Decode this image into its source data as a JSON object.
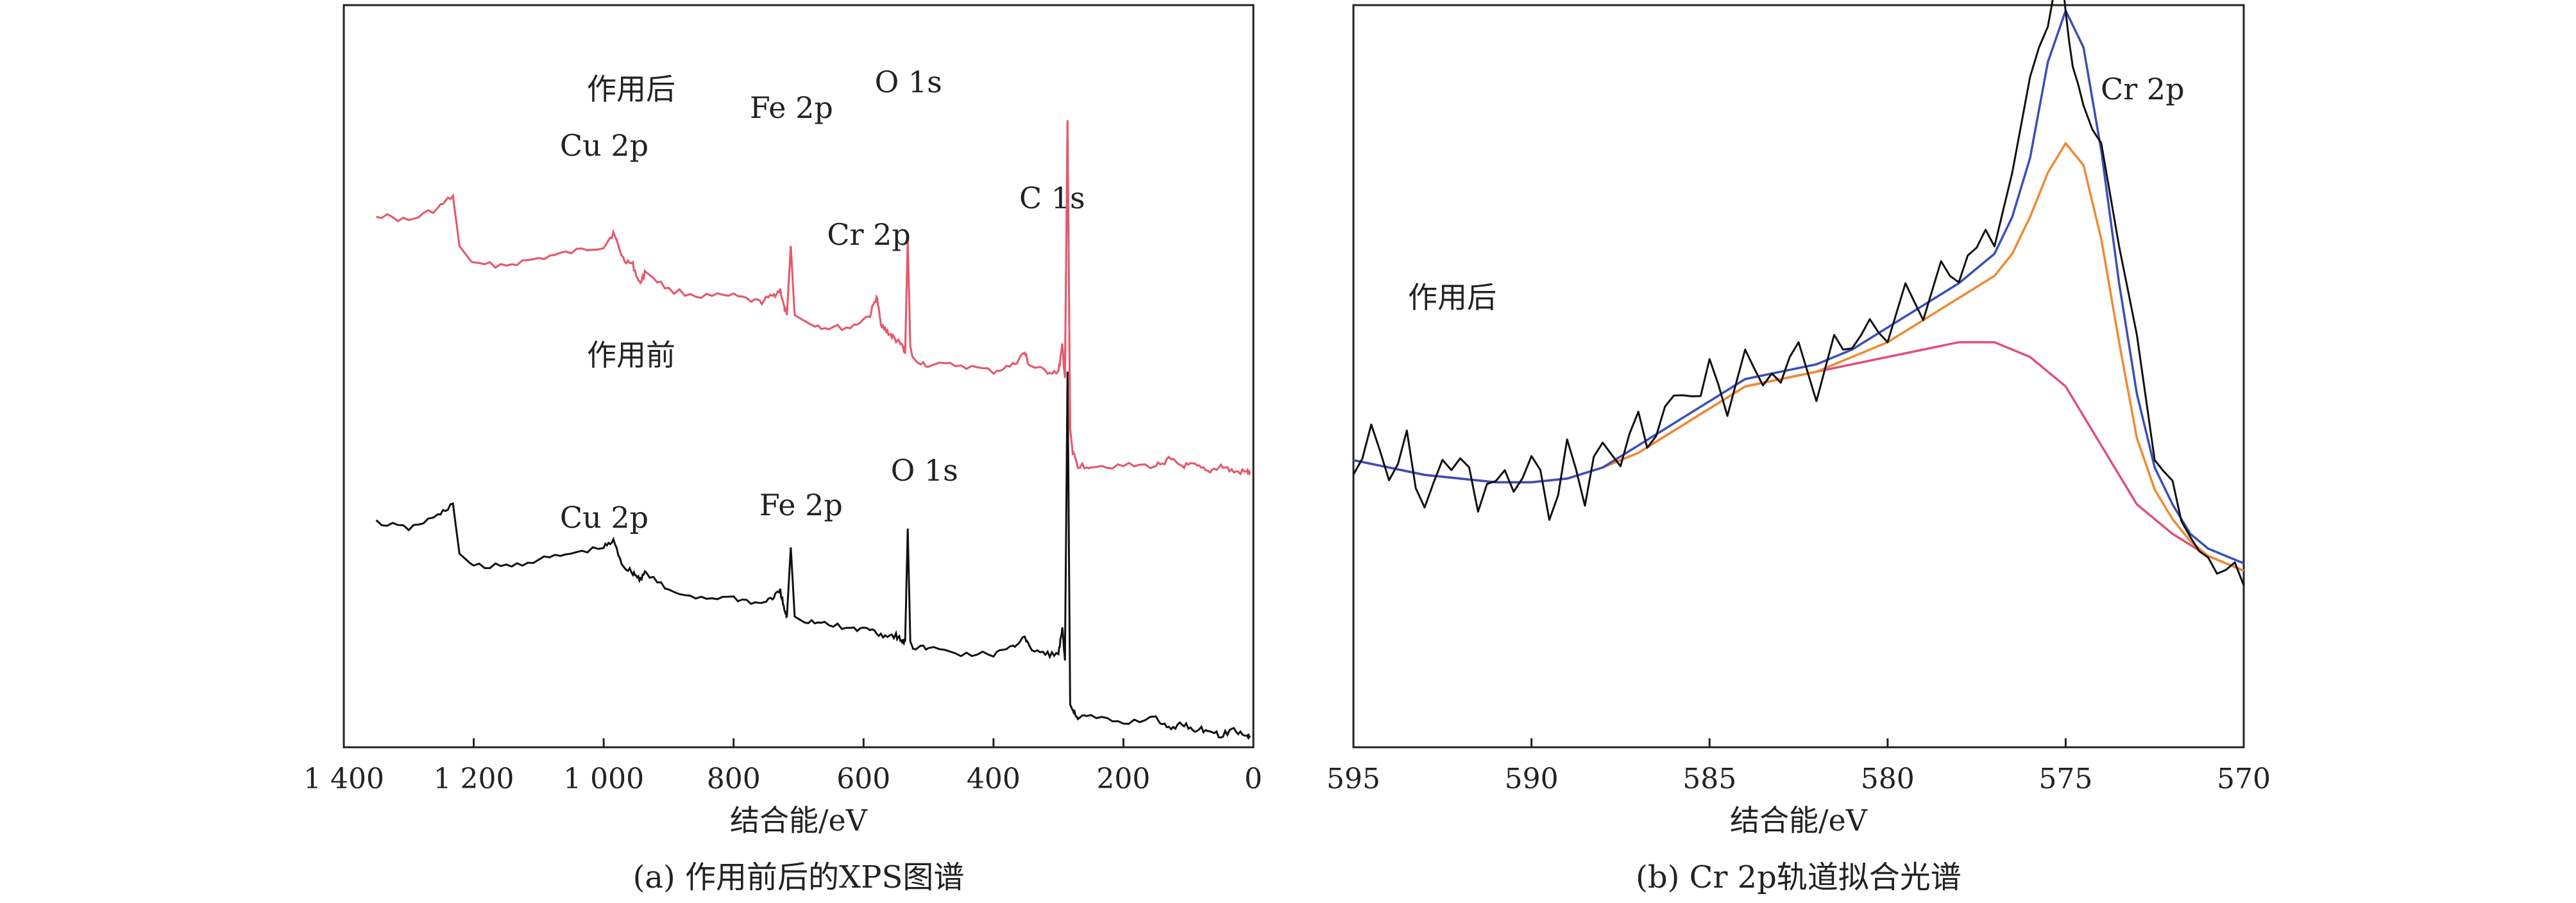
{
  "chart_data": [
    {
      "type": "line",
      "caption": "(a) 作用前后的XPS图谱",
      "xlabel": "结合能/eV",
      "ylabel": "",
      "xlim": [
        1400,
        0
      ],
      "x_reversed": true,
      "y_ticks_shown": false,
      "x_ticks": [
        1400,
        1200,
        1000,
        800,
        600,
        400,
        200,
        0
      ],
      "x_tick_labels": [
        "1 400",
        "1 200",
        "1 000",
        "800",
        "600",
        "400",
        "200",
        "0"
      ],
      "series": [
        {
          "name": "作用后",
          "color": "#e0507a",
          "overlay_color": "#f08a30",
          "x": [
            1350,
            1300,
            1255,
            1232,
            1222,
            1200,
            1150,
            1100,
            1050,
            1000,
            985,
            970,
            955,
            945,
            935,
            900,
            850,
            800,
            760,
            740,
            728,
            722,
            718,
            712,
            706,
            690,
            660,
            620,
            590,
            580,
            574,
            570,
            560,
            550,
            540,
            536,
            532,
            528,
            524,
            500,
            450,
            400,
            370,
            352,
            345,
            320,
            300,
            294,
            290,
            286,
            282,
            278,
            270,
            250,
            200,
            150,
            130,
            110,
            90,
            70,
            50,
            30,
            10,
            5
          ],
          "y": [
            0.74,
            0.73,
            0.75,
            0.77,
            0.69,
            0.66,
            0.66,
            0.67,
            0.68,
            0.69,
            0.71,
            0.67,
            0.66,
            0.63,
            0.65,
            0.62,
            0.61,
            0.61,
            0.6,
            0.61,
            0.62,
            0.59,
            0.58,
            0.69,
            0.58,
            0.57,
            0.56,
            0.56,
            0.58,
            0.61,
            0.57,
            0.56,
            0.55,
            0.54,
            0.53,
            0.52,
            0.7,
            0.53,
            0.51,
            0.5,
            0.5,
            0.49,
            0.5,
            0.52,
            0.5,
            0.49,
            0.49,
            0.53,
            0.48,
            0.89,
            0.4,
            0.36,
            0.34,
            0.34,
            0.34,
            0.34,
            0.35,
            0.34,
            0.34,
            0.33,
            0.34,
            0.33,
            0.33,
            0.33
          ],
          "label_peaks": [
            {
              "label": "Cu 2p",
              "x": 935
            },
            {
              "label": "Fe 2p",
              "x": 711
            },
            {
              "label": "Cr 2p",
              "x": 577
            },
            {
              "label": "O 1s",
              "x": 531
            },
            {
              "label": "C 1s",
              "x": 285
            }
          ]
        },
        {
          "name": "作用前",
          "color": "#111111",
          "x": [
            1350,
            1300,
            1255,
            1232,
            1222,
            1200,
            1150,
            1100,
            1050,
            1000,
            985,
            970,
            955,
            945,
            935,
            900,
            850,
            800,
            760,
            740,
            728,
            722,
            718,
            712,
            706,
            690,
            660,
            620,
            590,
            570,
            550,
            540,
            536,
            532,
            528,
            524,
            500,
            450,
            400,
            370,
            352,
            345,
            320,
            300,
            294,
            290,
            286,
            282,
            278,
            270,
            250,
            200,
            150,
            130,
            110,
            90,
            70,
            50,
            30,
            10,
            5
          ],
          "y": [
            0.25,
            0.24,
            0.26,
            0.28,
            0.2,
            0.18,
            0.18,
            0.19,
            0.2,
            0.21,
            0.22,
            0.18,
            0.17,
            0.16,
            0.17,
            0.14,
            0.13,
            0.13,
            0.12,
            0.13,
            0.14,
            0.11,
            0.1,
            0.21,
            0.1,
            0.09,
            0.09,
            0.08,
            0.08,
            0.07,
            0.07,
            0.06,
            0.06,
            0.24,
            0.06,
            0.05,
            0.05,
            0.04,
            0.04,
            0.05,
            0.07,
            0.05,
            0.04,
            0.04,
            0.08,
            0.03,
            0.49,
            -0.04,
            -0.05,
            -0.06,
            -0.06,
            -0.07,
            -0.06,
            -0.08,
            -0.07,
            -0.08,
            -0.08,
            -0.09,
            -0.08,
            -0.09,
            -0.09
          ],
          "label_peaks": [
            {
              "label": "Cu 2p",
              "x": 935
            },
            {
              "label": "Fe 2p",
              "x": 711
            },
            {
              "label": "O 1s",
              "x": 531
            },
            {
              "label": "C 1s",
              "x": 285
            }
          ]
        }
      ]
    },
    {
      "type": "line",
      "caption": "(b) Cr 2p轨道拟合光谱",
      "xlabel": "结合能/eV",
      "ylabel": "",
      "xlim": [
        595,
        570
      ],
      "x_reversed": true,
      "y_ticks_shown": false,
      "ylim": [
        0,
        1
      ],
      "x_ticks": [
        595,
        590,
        585,
        580,
        575,
        570
      ],
      "x_tick_labels": [
        "595",
        "590",
        "585",
        "580",
        "575",
        "570"
      ],
      "series_label": "作用后",
      "peak_label": "Cr 2p",
      "series": [
        {
          "role": "raw",
          "color": "#111111",
          "x": [
            595.0,
            594.5,
            594.0,
            593.5,
            593.0,
            592.5,
            592.0,
            591.5,
            591.0,
            590.5,
            590.0,
            589.5,
            589.0,
            588.5,
            588.0,
            587.5,
            587.0,
            586.5,
            586.0,
            585.5,
            585.0,
            584.5,
            584.0,
            583.5,
            583.0,
            582.5,
            582.0,
            581.5,
            581.0,
            580.5,
            580.0,
            579.5,
            579.0,
            578.5,
            578.0,
            577.5,
            577.0,
            576.5,
            576.0,
            575.5,
            575.2,
            575.0,
            574.8,
            574.5,
            574.0,
            573.5,
            573.0,
            572.5,
            572.0,
            571.5,
            571.0,
            570.5,
            570.0
          ],
          "y": [
            0.26,
            0.31,
            0.25,
            0.3,
            0.22,
            0.27,
            0.29,
            0.21,
            0.26,
            0.24,
            0.27,
            0.22,
            0.29,
            0.24,
            0.3,
            0.28,
            0.33,
            0.31,
            0.37,
            0.35,
            0.41,
            0.34,
            0.43,
            0.38,
            0.39,
            0.44,
            0.36,
            0.45,
            0.41,
            0.48,
            0.44,
            0.52,
            0.47,
            0.55,
            0.51,
            0.58,
            0.57,
            0.67,
            0.8,
            0.88,
            0.95,
            0.88,
            0.8,
            0.77,
            0.71,
            0.57,
            0.45,
            0.28,
            0.25,
            0.18,
            0.13,
            0.15,
            0.11
          ]
        },
        {
          "role": "fit-envelope",
          "color": "#3a4fb8",
          "x": [
            595,
            594,
            593,
            592,
            591,
            590,
            589,
            588,
            587,
            586,
            585,
            584,
            583,
            582,
            581,
            580,
            579,
            578,
            577,
            576.5,
            576,
            575.5,
            575,
            574.5,
            574,
            573.5,
            573,
            572.5,
            572,
            571.5,
            571,
            570.5,
            570
          ],
          "y": [
            0.28,
            0.27,
            0.26,
            0.255,
            0.25,
            0.25,
            0.255,
            0.27,
            0.3,
            0.33,
            0.36,
            0.39,
            0.4,
            0.41,
            0.43,
            0.46,
            0.49,
            0.52,
            0.56,
            0.61,
            0.69,
            0.82,
            0.89,
            0.84,
            0.7,
            0.52,
            0.37,
            0.27,
            0.22,
            0.18,
            0.16,
            0.15,
            0.14
          ]
        },
        {
          "role": "fit-component",
          "color": "#f08a30",
          "x": [
            595,
            594,
            593,
            592,
            591,
            590,
            589,
            588,
            587,
            586,
            585,
            584,
            583,
            582,
            581,
            580,
            579,
            578,
            577,
            576.5,
            576,
            575.5,
            575,
            574.5,
            574,
            573.5,
            573,
            572.5,
            572,
            571.5,
            571,
            570.5,
            570
          ],
          "y": [
            0.28,
            0.27,
            0.26,
            0.255,
            0.25,
            0.25,
            0.255,
            0.27,
            0.29,
            0.32,
            0.35,
            0.38,
            0.39,
            0.4,
            0.42,
            0.44,
            0.47,
            0.5,
            0.53,
            0.56,
            0.61,
            0.67,
            0.71,
            0.68,
            0.58,
            0.44,
            0.31,
            0.24,
            0.2,
            0.17,
            0.15,
            0.14,
            0.13
          ]
        },
        {
          "role": "fit-baseline",
          "color": "#e0507a",
          "x": [
            595,
            594,
            593,
            592,
            591,
            590,
            589,
            588,
            587,
            586,
            585,
            584,
            583,
            582,
            581,
            580,
            579,
            578,
            577,
            576,
            575,
            574,
            573,
            572,
            571,
            570
          ],
          "y": [
            0.28,
            0.27,
            0.26,
            0.255,
            0.25,
            0.25,
            0.255,
            0.27,
            0.29,
            0.32,
            0.35,
            0.38,
            0.39,
            0.4,
            0.41,
            0.42,
            0.43,
            0.44,
            0.44,
            0.42,
            0.38,
            0.3,
            0.22,
            0.18,
            0.15,
            0.13
          ]
        }
      ]
    }
  ]
}
